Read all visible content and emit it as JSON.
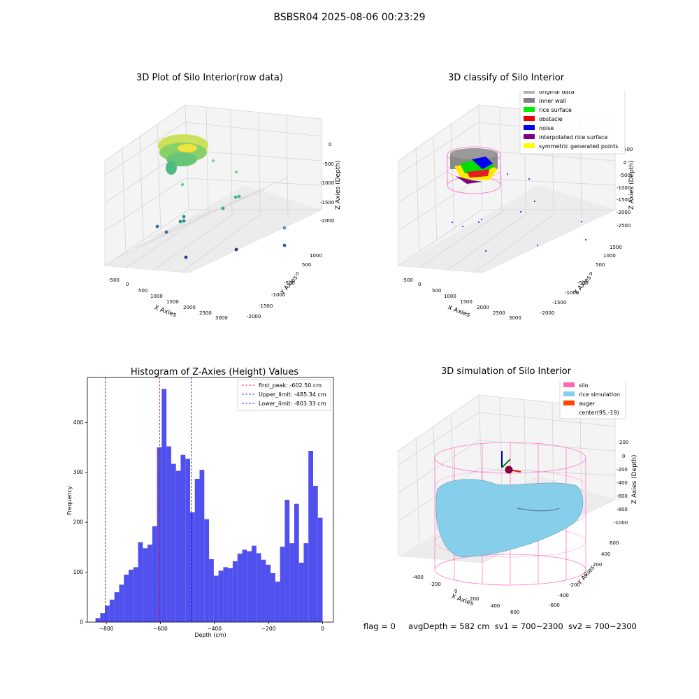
{
  "figure": {
    "suptitle": "BSBSR04 2025-08-06 00:23:29",
    "status": {
      "flag": "flag = 0",
      "avg_depth": "avgDepth = 582 cm",
      "sv1": "sv1 = 700~2300",
      "sv2": "sv2 = 700~2300"
    }
  },
  "panels": {
    "raw": {
      "title": "3D Plot of Silo Interior(row data)",
      "xlabel": "X Axies",
      "ylabel": "Y Axies",
      "zlabel": "Z Axies (Depth)",
      "xticks": [
        "-500",
        "0",
        "500",
        "1000",
        "1500",
        "2000",
        "2500",
        "3000"
      ],
      "yticks": [
        "1000",
        "500",
        "0",
        "-500",
        "-1000",
        "-1500",
        "-2000"
      ],
      "zticks": [
        "0",
        "-500",
        "-1000",
        "-1500",
        "-2000"
      ]
    },
    "classify": {
      "title": "3D classify of Silo Interior",
      "xlabel": "X Axies",
      "ylabel": "Y Axies",
      "zlabel": "Z Axies (Depth)",
      "xticks": [
        "-500",
        "0",
        "500",
        "1000",
        "1500",
        "2000",
        "2500",
        "3000"
      ],
      "yticks": [
        "1500",
        "1000",
        "500",
        "0",
        "-500",
        "-1000",
        "-1500",
        "-2000"
      ],
      "zticks": [
        "500",
        "0",
        "-500",
        "-1000",
        "-1500",
        "-2000",
        "-2500"
      ],
      "legend": [
        {
          "label": "original data",
          "color": "#b0b0b0"
        },
        {
          "label": "inner wall",
          "color": "#808080"
        },
        {
          "label": "rice surface",
          "color": "#00ee00"
        },
        {
          "label": "obstacle",
          "color": "#ee0000"
        },
        {
          "label": "noise",
          "color": "#0000ee"
        },
        {
          "label": "interpolated rice surface",
          "color": "#800080"
        },
        {
          "label": "symmetric generated points",
          "color": "#ffff00"
        }
      ]
    },
    "simulation": {
      "title": "3D simulation of Silo Interior",
      "xlabel": "X Axies",
      "ylabel": "Y Axies",
      "zlabel": "Z Axies (Depth)",
      "xticks": [
        "-400",
        "-200",
        "0",
        "200",
        "400",
        "600"
      ],
      "yticks": [
        "600",
        "400",
        "200",
        "0",
        "-200",
        "-400",
        "-600"
      ],
      "zticks": [
        "200",
        "0",
        "-200",
        "-400",
        "-600",
        "-800",
        "-1000"
      ],
      "legend": [
        {
          "label": "silo",
          "color": "#ff69b4"
        },
        {
          "label": "rice simulation",
          "color": "#87ceeb"
        },
        {
          "label": "auger",
          "color": "#ff4500"
        },
        {
          "label": "center(95,-19)",
          "color": ""
        }
      ]
    }
  },
  "chart_data": {
    "type": "bar",
    "title": "Histogram of Z-Axies (Height) Values",
    "xlabel": "Depth (cm)",
    "ylabel": "Frequency",
    "xlim": [
      -870,
      40
    ],
    "ylim": [
      0,
      490
    ],
    "xticks": [
      -800,
      -600,
      -400,
      -200,
      0
    ],
    "yticks": [
      0,
      100,
      200,
      300,
      400
    ],
    "bin_width": 17.5,
    "bin_starts": [
      -840,
      -822.5,
      -805,
      -787.5,
      -770,
      -752.5,
      -735,
      -717.5,
      -700,
      -682.5,
      -665,
      -647.5,
      -630,
      -612.5,
      -595,
      -577.5,
      -560,
      -542.5,
      -525,
      -507.5,
      -490,
      -472.5,
      -455,
      -437.5,
      -420,
      -402.5,
      -385,
      -367.5,
      -350,
      -332.5,
      -315,
      -297.5,
      -280,
      -262.5,
      -245,
      -227.5,
      -210,
      -192.5,
      -175,
      -157.5,
      -140,
      -122.5,
      -105,
      -87.5,
      -70,
      -52.5,
      -35,
      -17.5
    ],
    "values": [
      8,
      18,
      33,
      45,
      60,
      75,
      95,
      105,
      110,
      160,
      148,
      155,
      192,
      350,
      467,
      352,
      317,
      303,
      335,
      327,
      220,
      287,
      305,
      206,
      126,
      93,
      103,
      110,
      108,
      122,
      137,
      145,
      142,
      153,
      138,
      125,
      115,
      98,
      81,
      151,
      245,
      158,
      237,
      119,
      158,
      343,
      273,
      209
    ],
    "tail_bars": [
      {
        "start": -17.5,
        "value": 8
      },
      {
        "start": -10,
        "value": 72
      }
    ],
    "color": "#5050ee",
    "lines": [
      {
        "label": "first_peak: -602.50 cm",
        "x": -602.5,
        "color": "#ff0000"
      },
      {
        "label": "Upper_limit: -485.34 cm",
        "x": -485.34,
        "color": "#0000ff"
      },
      {
        "label": "Lower_limit: -803.33 cm",
        "x": -803.33,
        "color": "#0000ff"
      }
    ]
  }
}
